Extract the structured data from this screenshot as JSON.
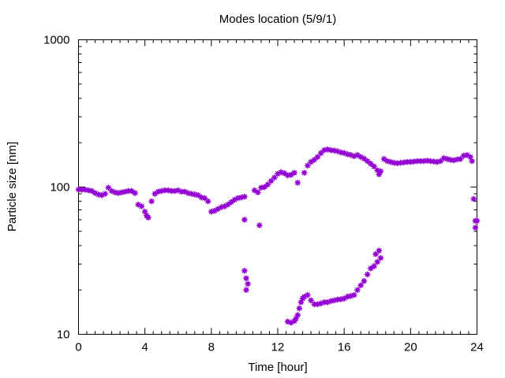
{
  "chart_data": {
    "type": "scatter",
    "title": "Modes location (5/9/1)",
    "xlabel": "Time [hour]",
    "ylabel": "Particle size [nm]",
    "xlim": [
      0,
      24
    ],
    "ylim": [
      10,
      1000
    ],
    "yscale": "log",
    "grid": false,
    "legend": "none",
    "marker_color": "#9400d3",
    "x_ticks": [
      0,
      4,
      8,
      12,
      16,
      20,
      24
    ],
    "x_tick_labels": [
      "0",
      "4",
      "8",
      "12",
      "16",
      "20",
      "24"
    ],
    "y_ticks": [
      10,
      100,
      1000
    ],
    "y_tick_labels": [
      "10",
      "100",
      "1000"
    ],
    "series": [
      {
        "values": [
          [
            0.0,
            96
          ],
          [
            0.2,
            96
          ],
          [
            0.4,
            96
          ],
          [
            0.6,
            95
          ],
          [
            0.8,
            94
          ],
          [
            1.0,
            91
          ],
          [
            1.2,
            89
          ],
          [
            1.4,
            88
          ],
          [
            1.6,
            90
          ],
          [
            1.8,
            99
          ],
          [
            2.0,
            94
          ],
          [
            2.2,
            92
          ],
          [
            2.4,
            91
          ],
          [
            2.6,
            92
          ],
          [
            2.8,
            93
          ],
          [
            3.0,
            94
          ],
          [
            3.2,
            94
          ],
          [
            3.4,
            91
          ],
          [
            3.6,
            76
          ],
          [
            3.8,
            74
          ],
          [
            4.0,
            68
          ],
          [
            4.1,
            64
          ],
          [
            4.2,
            62
          ],
          [
            4.4,
            80
          ],
          [
            4.6,
            90
          ],
          [
            4.8,
            93
          ],
          [
            5.0,
            94
          ],
          [
            5.2,
            95
          ],
          [
            5.4,
            95
          ],
          [
            5.6,
            94
          ],
          [
            5.8,
            94
          ],
          [
            6.0,
            95
          ],
          [
            6.2,
            93
          ],
          [
            6.4,
            93
          ],
          [
            6.6,
            91
          ],
          [
            6.8,
            90
          ],
          [
            7.0,
            89
          ],
          [
            7.2,
            88
          ],
          [
            7.4,
            85
          ],
          [
            7.6,
            84
          ],
          [
            7.8,
            80
          ],
          [
            8.0,
            68
          ],
          [
            8.2,
            69
          ],
          [
            8.4,
            71
          ],
          [
            8.6,
            73
          ],
          [
            8.8,
            74
          ],
          [
            9.0,
            76
          ],
          [
            9.2,
            79
          ],
          [
            9.4,
            82
          ],
          [
            9.6,
            84
          ],
          [
            9.8,
            85
          ],
          [
            10.0,
            86
          ],
          [
            10.6,
            95
          ],
          [
            10.8,
            92
          ],
          [
            11.0,
            99
          ],
          [
            11.2,
            100
          ],
          [
            11.4,
            104
          ],
          [
            11.6,
            110
          ],
          [
            11.8,
            116
          ],
          [
            12.0,
            123
          ],
          [
            12.2,
            126
          ],
          [
            12.4,
            124
          ],
          [
            12.6,
            120
          ],
          [
            12.8,
            121
          ],
          [
            13.0,
            125
          ],
          [
            13.2,
            107
          ],
          [
            13.6,
            125
          ],
          [
            13.8,
            140
          ],
          [
            14.0,
            148
          ],
          [
            14.2,
            153
          ],
          [
            14.4,
            160
          ],
          [
            14.6,
            170
          ],
          [
            14.8,
            178
          ],
          [
            15.0,
            180
          ],
          [
            15.2,
            178
          ],
          [
            15.4,
            177
          ],
          [
            15.6,
            175
          ],
          [
            15.8,
            172
          ],
          [
            16.0,
            170
          ],
          [
            16.2,
            167
          ],
          [
            16.4,
            165
          ],
          [
            16.6,
            162
          ],
          [
            16.8,
            165
          ],
          [
            17.0,
            160
          ],
          [
            17.2,
            156
          ],
          [
            17.4,
            150
          ],
          [
            17.6,
            144
          ],
          [
            17.8,
            138
          ],
          [
            18.0,
            130
          ],
          [
            18.1,
            122
          ],
          [
            18.2,
            128
          ],
          [
            18.4,
            155
          ],
          [
            18.6,
            150
          ],
          [
            18.8,
            148
          ],
          [
            19.0,
            146
          ],
          [
            19.2,
            145
          ],
          [
            19.4,
            146
          ],
          [
            19.6,
            147
          ],
          [
            19.8,
            148
          ],
          [
            20.0,
            148
          ],
          [
            20.2,
            149
          ],
          [
            20.4,
            150
          ],
          [
            20.6,
            150
          ],
          [
            20.8,
            150
          ],
          [
            21.0,
            151
          ],
          [
            21.2,
            150
          ],
          [
            21.4,
            149
          ],
          [
            21.6,
            148
          ],
          [
            21.8,
            150
          ],
          [
            22.0,
            157
          ],
          [
            22.2,
            155
          ],
          [
            22.4,
            153
          ],
          [
            22.6,
            152
          ],
          [
            22.8,
            154
          ],
          [
            23.0,
            155
          ],
          [
            23.2,
            163
          ],
          [
            23.4,
            165
          ],
          [
            23.6,
            160
          ],
          [
            23.7,
            150
          ]
        ]
      },
      {
        "values": [
          [
            10.0,
            60
          ],
          [
            10.0,
            27
          ],
          [
            10.1,
            24
          ],
          [
            10.2,
            22
          ],
          [
            10.1,
            20
          ],
          [
            10.9,
            55
          ],
          [
            23.8,
            83
          ],
          [
            23.9,
            59
          ],
          [
            24.0,
            59
          ],
          [
            23.9,
            53
          ]
        ]
      },
      {
        "values": [
          [
            12.6,
            12.2
          ],
          [
            12.8,
            12.0
          ],
          [
            13.0,
            12.3
          ],
          [
            13.1,
            12.8
          ],
          [
            13.2,
            13.5
          ],
          [
            13.3,
            15.0
          ],
          [
            13.4,
            16.5
          ],
          [
            13.5,
            17.5
          ],
          [
            13.6,
            18.0
          ],
          [
            13.8,
            18.5
          ],
          [
            14.0,
            17.0
          ],
          [
            14.2,
            16.0
          ],
          [
            14.4,
            16.0
          ],
          [
            14.6,
            16.2
          ],
          [
            14.8,
            16.5
          ],
          [
            15.0,
            16.5
          ],
          [
            15.2,
            16.8
          ],
          [
            15.4,
            17.0
          ],
          [
            15.6,
            17.2
          ],
          [
            15.8,
            17.3
          ],
          [
            16.0,
            17.5
          ],
          [
            16.2,
            18.0
          ],
          [
            16.4,
            18.2
          ],
          [
            16.6,
            18.5
          ],
          [
            16.8,
            20.0
          ],
          [
            17.0,
            21.5
          ],
          [
            17.2,
            23.0
          ],
          [
            17.4,
            25.5
          ],
          [
            17.6,
            28.0
          ],
          [
            17.8,
            29.0
          ],
          [
            18.0,
            31.0
          ],
          [
            17.9,
            35.0
          ],
          [
            18.1,
            37.0
          ],
          [
            18.2,
            33.0
          ]
        ]
      }
    ]
  }
}
